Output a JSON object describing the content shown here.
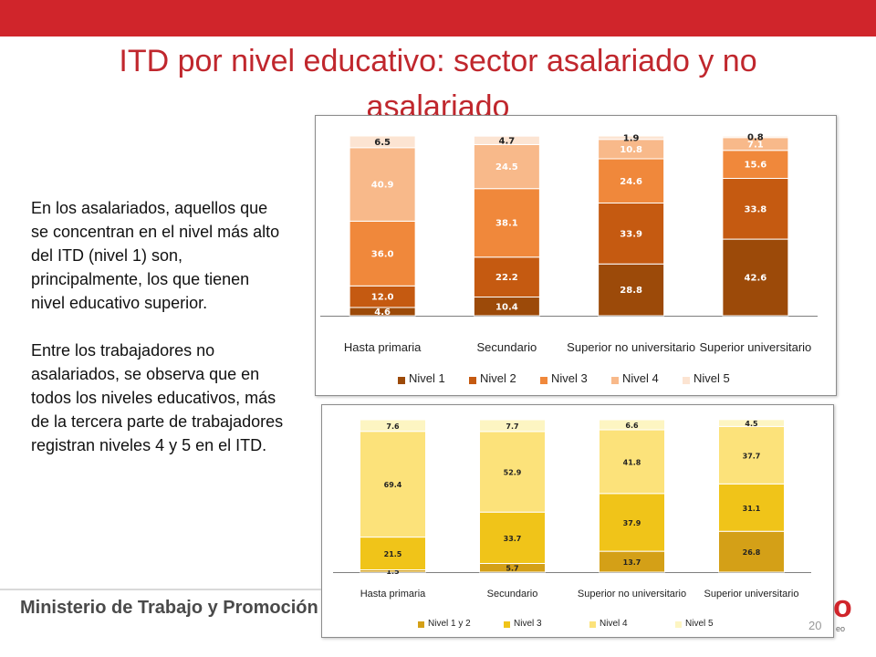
{
  "slide": {
    "title": "ITD por nivel educativo: sector asalariado y no asalariado",
    "paragraphs": [
      "En los asalariados, aquellos que se concentran en el nivel más alto del ITD (nivel 1) son, principalmente, los que tienen nivel educativo superior.",
      "Entre los trabajadores no asalariados, se observa que en todos los niveles educativos, más de la tercera parte de trabajadores registran niveles 4 y 5 en el ITD."
    ],
    "footer": "Ministerio de Trabajo y Promoción del Empleo",
    "page_number": "20",
    "logo_fragment": "o",
    "logo_small": "eo"
  },
  "colors": {
    "header_red": "#d0252b",
    "title_red": "#c0272d"
  },
  "chart_data": [
    {
      "type": "bar",
      "stacked": true,
      "categories": [
        "Hasta primaria",
        "Secundario",
        "Superior no universitario",
        "Superior universitario"
      ],
      "series": [
        {
          "name": "Nivel 1",
          "values": [
            4.6,
            10.4,
            28.8,
            42.6
          ],
          "color": "#9c4a09",
          "label_color": "#ffffff"
        },
        {
          "name": "Nivel 2",
          "values": [
            12.0,
            22.2,
            33.9,
            33.8
          ],
          "color": "#c55a11",
          "label_color": "#ffffff"
        },
        {
          "name": "Nivel 3",
          "values": [
            36.0,
            38.1,
            24.6,
            15.6
          ],
          "color": "#f0883b",
          "label_color": "#ffffff"
        },
        {
          "name": "Nivel 4",
          "values": [
            40.9,
            24.5,
            10.8,
            7.1
          ],
          "color": "#f8b98a",
          "label_color": "#ffffff"
        },
        {
          "name": "Nivel 5",
          "values": [
            6.5,
            4.7,
            1.9,
            0.8
          ],
          "color": "#fce4d2",
          "label_color": "#222222"
        }
      ],
      "ylim": [
        0,
        100
      ],
      "legend": "bottom"
    },
    {
      "type": "bar",
      "stacked": true,
      "categories": [
        "Hasta primaria",
        "Secundario",
        "Superior no universitario",
        "Superior universitario"
      ],
      "series": [
        {
          "name": "Nivel 1 y 2",
          "values": [
            1.5,
            5.7,
            13.7,
            26.8
          ],
          "color": "#d4a017",
          "label_color": "#222222"
        },
        {
          "name": "Nivel 3",
          "values": [
            21.5,
            33.7,
            37.9,
            31.1
          ],
          "color": "#f0c419",
          "label_color": "#222222"
        },
        {
          "name": "Nivel 4",
          "values": [
            69.4,
            52.9,
            41.8,
            37.7
          ],
          "color": "#fce27a",
          "label_color": "#222222"
        },
        {
          "name": "Nivel 5",
          "values": [
            7.6,
            7.7,
            6.6,
            4.5
          ],
          "color": "#fdf5c2",
          "label_color": "#222222"
        }
      ],
      "ylim": [
        0,
        100
      ],
      "legend": "bottom"
    }
  ]
}
